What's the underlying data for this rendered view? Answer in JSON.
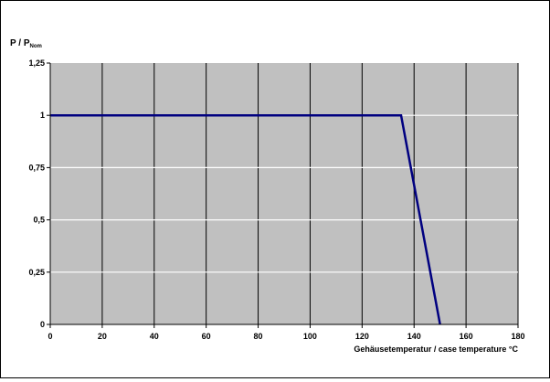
{
  "chart_data": {
    "type": "line",
    "ylabel_main": "P / P",
    "ylabel_sub": "Nom",
    "xlabel": "Gehäusetemperatur / case temperature °C",
    "xlim": [
      0,
      180
    ],
    "ylim": [
      0,
      1.25
    ],
    "x_ticks": [
      0,
      20,
      40,
      60,
      80,
      100,
      120,
      140,
      160,
      180
    ],
    "x_tick_labels": [
      "0",
      "20",
      "40",
      "60",
      "80",
      "100",
      "120",
      "140",
      "160",
      "180"
    ],
    "y_ticks": [
      0,
      0.25,
      0.5,
      0.75,
      1,
      1.25
    ],
    "y_tick_labels": [
      "0",
      "0,25",
      "0,5",
      "0,75",
      "1",
      "1,25"
    ],
    "grid": true,
    "colors": {
      "plot_bg": "#c0c0c0",
      "grid": "#ffffff",
      "series": "#000080"
    },
    "series": [
      {
        "x": [
          0,
          135,
          150
        ],
        "y": [
          1,
          1,
          0
        ]
      }
    ]
  }
}
